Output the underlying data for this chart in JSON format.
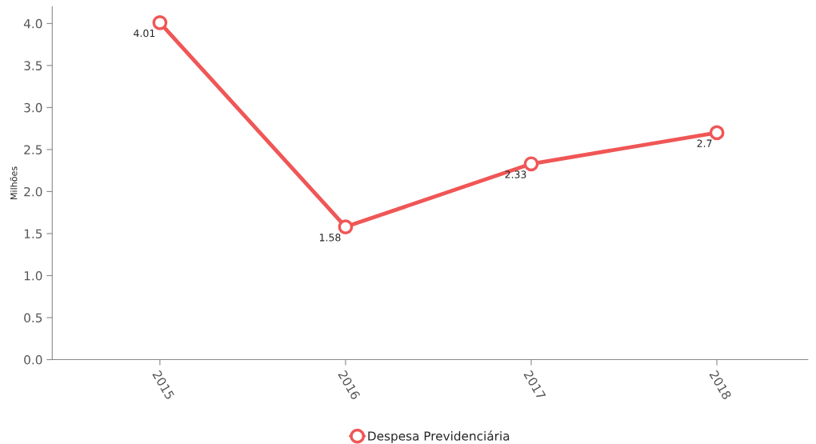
{
  "chart_data": {
    "type": "line",
    "ylabel": "Milhões",
    "categories": [
      "2015",
      "2016",
      "2017",
      "2018"
    ],
    "series": [
      {
        "name": "Despesa Previdenciária",
        "color": "#f05656",
        "values": [
          4.01,
          1.58,
          2.33,
          2.7
        ]
      }
    ],
    "ylim": [
      0,
      4.2
    ],
    "yticks": [
      {
        "value": 0,
        "label": "0.0"
      },
      {
        "value": 0.5,
        "label": "0.5"
      },
      {
        "value": 1,
        "label": "1.0"
      },
      {
        "value": 1.5,
        "label": "1.5"
      },
      {
        "value": 2,
        "label": "2.0"
      },
      {
        "value": 2.5,
        "label": "2.5"
      },
      {
        "value": 3,
        "label": "3.0"
      },
      {
        "value": 3.5,
        "label": "3.5"
      },
      {
        "value": 4,
        "label": "4.0"
      }
    ],
    "data_labels": true,
    "legend": "bottom",
    "grid": false,
    "marker": "circle",
    "line_style": "solid"
  }
}
